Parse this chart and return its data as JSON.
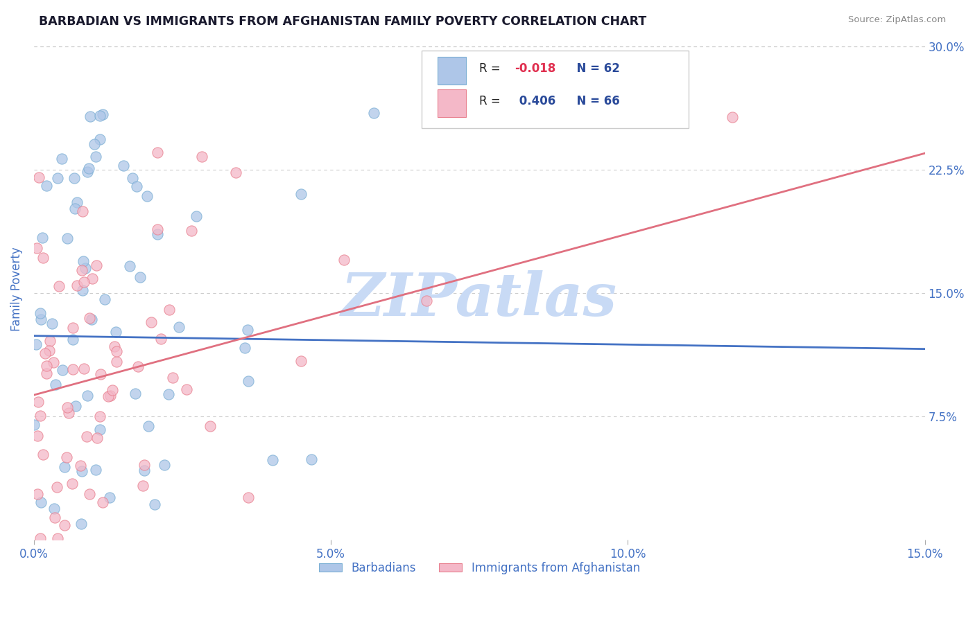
{
  "title": "BARBADIAN VS IMMIGRANTS FROM AFGHANISTAN FAMILY POVERTY CORRELATION CHART",
  "source": "Source: ZipAtlas.com",
  "ylabel": "Family Poverty",
  "x_min": 0.0,
  "x_max": 0.15,
  "y_min": 0.0,
  "y_max": 0.3,
  "y_ticks": [
    0.075,
    0.15,
    0.225,
    0.3
  ],
  "y_tick_labels": [
    "7.5%",
    "15.0%",
    "22.5%",
    "30.0%"
  ],
  "x_ticks": [
    0.0,
    0.05,
    0.1,
    0.15
  ],
  "x_tick_labels": [
    "0.0%",
    "5.0%",
    "10.0%",
    "15.0%"
  ],
  "barbadian_scatter_color": "#aec6e8",
  "barbadian_edge_color": "#7bafd4",
  "afghanistan_scatter_color": "#f4b8c8",
  "afghanistan_edge_color": "#e8808f",
  "barbadian_line_color": "#4472c4",
  "afghanistan_line_color": "#e07080",
  "legend_blue_color": "#aec6e8",
  "legend_pink_color": "#f4b8c8",
  "legend_text_color": "#2a4a9a",
  "legend_R_color": "#e03050",
  "watermark": "ZIPatlas",
  "watermark_color": "#c8daf5",
  "background_color": "#ffffff",
  "grid_color": "#cccccc",
  "title_color": "#1a1a2e",
  "tick_label_color": "#4472c4",
  "R_barbadian": -0.018,
  "N_barbadian": 62,
  "R_afghanistan": 0.406,
  "N_afghanistan": 66,
  "legend_label_blue": "Barbadians",
  "legend_label_pink": "Immigrants from Afghanistan"
}
